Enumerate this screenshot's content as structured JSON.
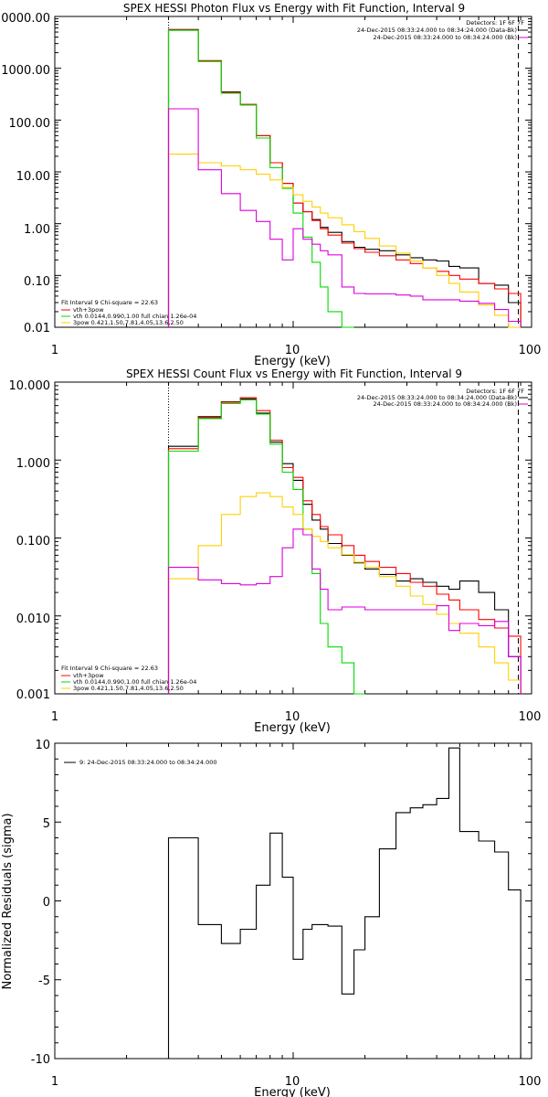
{
  "charts": [
    {
      "type": "line",
      "title": "SPEX HESSI Photon Flux vs Energy with Fit Function, Interval 9",
      "xlabel": "Energy (keV)",
      "ylabel": "",
      "xscale": "log",
      "yscale": "log",
      "xlim": [
        1,
        100
      ],
      "ylim": [
        0.01,
        10000
      ],
      "x_ticks": [
        "1",
        "10",
        "100"
      ],
      "y_ticks": [
        "0.01",
        "0.10",
        "1.00",
        "10.00",
        "100.00",
        "1000.00",
        "10000.00"
      ],
      "header_text": [
        "Detectors: 1F 6F 7F",
        "24-Dec-2015 08:33:24.000 to 08:34:24.000 (Data-Bk)",
        "24-Dec-2015 08:33:24.000 to 08:34:24.000 (Bk)"
      ],
      "legend_text": [
        "Fit Interval 9   Chi-square = 22.63",
        "vth+3pow",
        "vth 0.0144,0.990,1.00  full chian 1.26e-04",
        "3pow 0.421,1.50,7.81,4.05,13.6,2.50"
      ]
    },
    {
      "type": "line",
      "title": "SPEX HESSI Count Flux vs Energy with Fit Function, Interval 9",
      "xlabel": "Energy (keV)",
      "ylabel": "",
      "xscale": "log",
      "yscale": "log",
      "xlim": [
        1,
        100
      ],
      "ylim": [
        0.001,
        10
      ],
      "x_ticks": [
        "1",
        "10",
        "100"
      ],
      "y_ticks": [
        "0.001",
        "0.010",
        "0.100",
        "1.000",
        "10.000"
      ],
      "header_text": [
        "Detectors: 1F 6F 7F",
        "24-Dec-2015 08:33:24.000 to 08:34:24.000 (Data-Bk)",
        "24-Dec-2015 08:33:24.000 to 08:34:24.000 (Bk)"
      ],
      "legend_text": [
        "Fit Interval 9   Chi-square = 22.63",
        "vth+3pow",
        "vth 0.0144,0.990,1.00  full chian 1.26e-04",
        "3pow 0.421,1.50,7.81,4.05,13.6,2.50"
      ]
    },
    {
      "type": "line",
      "title": "",
      "xlabel": "Energy (keV)",
      "ylabel": "Normalized Residuals (sigma)",
      "xscale": "log",
      "yscale": "linear",
      "xlim": [
        1,
        100
      ],
      "ylim": [
        -10,
        10
      ],
      "x_ticks": [
        "1",
        "10",
        "100"
      ],
      "y_ticks": [
        "-10",
        "-5",
        "0",
        "5",
        "10"
      ],
      "legend_text": [
        "9: 24-Dec-2015 08:33:24.000 to 08:34:24.000"
      ]
    }
  ],
  "chart_data": [
    {
      "type": "line",
      "xscale": "log",
      "yscale": "log",
      "edges": [
        3,
        4,
        5,
        6,
        7,
        8,
        9,
        10,
        11,
        12,
        13,
        14,
        16,
        18,
        20,
        23,
        27,
        31,
        35,
        40,
        45,
        50,
        60,
        70,
        80,
        90
      ],
      "vlines": [
        {
          "x": 3,
          "style": "dotted"
        },
        {
          "x": 88,
          "style": "dashed"
        }
      ],
      "series": [
        {
          "color": "#000000",
          "values": [
            5600,
            1400,
            350,
            200,
            50,
            15,
            6,
            2.5,
            1.7,
            1.2,
            0.85,
            0.68,
            0.45,
            0.35,
            0.32,
            0.3,
            0.25,
            0.22,
            0.2,
            0.19,
            0.15,
            0.14,
            0.07,
            0.065,
            0.03
          ]
        },
        {
          "color": "#ff0000",
          "values": [
            5500,
            1400,
            340,
            200,
            50,
            15,
            6,
            2.5,
            1.7,
            1.15,
            0.8,
            0.6,
            0.42,
            0.33,
            0.28,
            0.24,
            0.2,
            0.17,
            0.14,
            0.12,
            0.1,
            0.085,
            0.07,
            0.055,
            0.045
          ]
        },
        {
          "color": "#00dd00",
          "values": [
            5400,
            1350,
            330,
            195,
            45,
            12,
            4.8,
            1.6,
            0.55,
            0.18,
            0.06,
            0.02,
            0.01
          ]
        },
        {
          "color": "#ffd000",
          "values": [
            22,
            15,
            13,
            11,
            9,
            7,
            5,
            3.6,
            2.7,
            2.1,
            1.6,
            1.3,
            0.95,
            0.7,
            0.52,
            0.37,
            0.27,
            0.19,
            0.14,
            0.1,
            0.07,
            0.048,
            0.027,
            0.017,
            0.01
          ]
        },
        {
          "color": "#dd00dd",
          "values": [
            165,
            11,
            3.8,
            1.8,
            1.1,
            0.5,
            0.2,
            0.8,
            0.5,
            0.4,
            0.3,
            0.25,
            0.06,
            0.045,
            0.044,
            0.044,
            0.042,
            0.04,
            0.034,
            0.034,
            0.034,
            0.032,
            0.029,
            0.022,
            0.013
          ]
        }
      ]
    },
    {
      "type": "line",
      "xscale": "log",
      "yscale": "log",
      "edges": [
        3,
        4,
        5,
        6,
        7,
        8,
        9,
        10,
        11,
        12,
        13,
        14,
        16,
        18,
        20,
        23,
        27,
        31,
        35,
        40,
        45,
        50,
        60,
        70,
        80,
        90
      ],
      "vlines": [
        {
          "x": 3,
          "style": "dotted"
        },
        {
          "x": 88,
          "style": "dashed"
        }
      ],
      "series": [
        {
          "color": "#000000",
          "values": [
            1.5,
            3.6,
            5.6,
            6.1,
            4,
            1.7,
            0.9,
            0.55,
            0.27,
            0.17,
            0.13,
            0.085,
            0.06,
            0.048,
            0.04,
            0.034,
            0.028,
            0.03,
            0.027,
            0.024,
            0.022,
            0.028,
            0.02,
            0.012,
            0.003
          ]
        },
        {
          "color": "#ff0000",
          "values": [
            1.4,
            3.5,
            5.5,
            6.3,
            4.3,
            1.8,
            0.8,
            0.6,
            0.3,
            0.2,
            0.14,
            0.11,
            0.08,
            0.06,
            0.05,
            0.042,
            0.035,
            0.027,
            0.024,
            0.019,
            0.016,
            0.012,
            0.009,
            0.007,
            0.0055
          ]
        },
        {
          "color": "#00dd00",
          "values": [
            1.3,
            3.4,
            5.3,
            5.9,
            3.9,
            1.6,
            0.7,
            0.42,
            0.13,
            0.035,
            0.008,
            0.004,
            0.0025,
            0.001
          ]
        },
        {
          "color": "#ffd000",
          "values": [
            0.03,
            0.08,
            0.2,
            0.34,
            0.38,
            0.34,
            0.25,
            0.2,
            0.13,
            0.105,
            0.09,
            0.075,
            0.061,
            0.049,
            0.042,
            0.032,
            0.024,
            0.018,
            0.014,
            0.0105,
            0.008,
            0.006,
            0.004,
            0.0025,
            0.0015
          ]
        },
        {
          "color": "#dd00dd",
          "values": [
            0.042,
            0.029,
            0.026,
            0.025,
            0.026,
            0.032,
            0.075,
            0.13,
            0.11,
            0.04,
            0.022,
            0.012,
            0.013,
            0.013,
            0.012,
            0.012,
            0.012,
            0.012,
            0.012,
            0.0135,
            0.0065,
            0.008,
            0.0075,
            0.0085,
            0.003
          ]
        }
      ]
    },
    {
      "type": "line",
      "xscale": "log",
      "yscale": "linear",
      "edges": [
        3,
        4,
        5,
        6,
        7,
        8,
        9,
        10,
        11,
        12,
        13,
        14,
        16,
        18,
        20,
        23,
        27,
        31,
        35,
        40,
        45,
        50,
        60,
        70,
        80,
        90
      ],
      "series": [
        {
          "color": "#000000",
          "values": [
            4.0,
            -1.5,
            -2.7,
            -1.8,
            1.0,
            4.3,
            1.5,
            -3.7,
            -1.8,
            -1.5,
            -1.5,
            -1.6,
            -5.9,
            -3.1,
            -1.0,
            3.3,
            5.6,
            5.9,
            6.1,
            6.5,
            9.7,
            4.4,
            3.8,
            3.1,
            0.7
          ]
        }
      ]
    }
  ]
}
